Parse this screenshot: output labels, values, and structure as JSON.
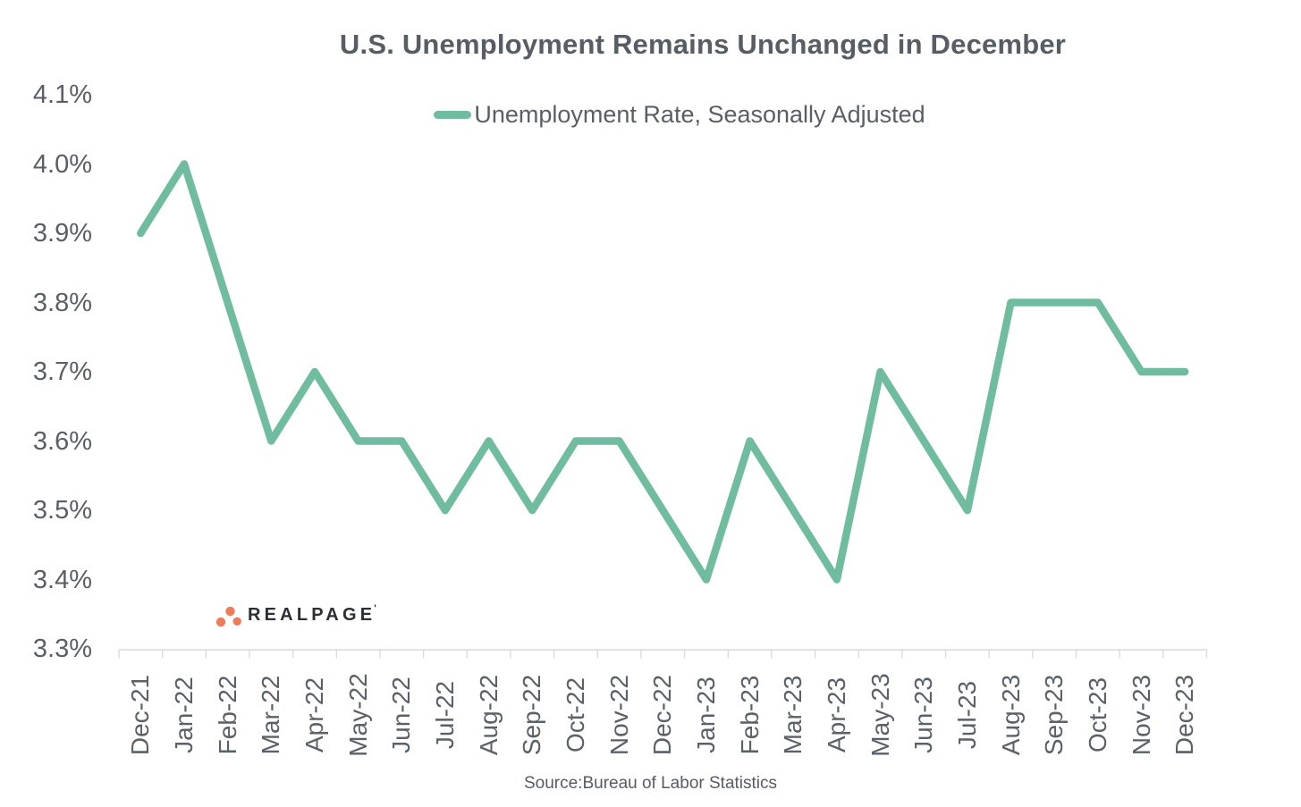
{
  "chart": {
    "title": "U.S. Unemployment Remains Unchanged in December",
    "legend_label": "Unemployment Rate, Seasonally Adjusted",
    "source": "Source:Bureau of Labor Statistics"
  },
  "logo": {
    "text": "REALPAGE",
    "trademark": "'",
    "dot_color": "#ec7c5b",
    "text_color": "#2b2e34"
  },
  "chart_data": {
    "type": "line",
    "title": "U.S. Unemployment Remains Unchanged in December",
    "legend": "Unemployment Rate, Seasonally Adjusted",
    "legend_position": "top",
    "categories": [
      "Dec-21",
      "Jan-22",
      "Feb-22",
      "Mar-22",
      "Apr-22",
      "May-22",
      "Jun-22",
      "Jul-22",
      "Aug-22",
      "Sep-22",
      "Oct-22",
      "Nov-22",
      "Dec-22",
      "Jan-23",
      "Feb-23",
      "Mar-23",
      "Apr-23",
      "May-23",
      "Jun-23",
      "Jul-23",
      "Aug-23",
      "Sep-23",
      "Oct-23",
      "Nov-23",
      "Dec-23"
    ],
    "values": [
      3.9,
      4.0,
      3.8,
      3.6,
      3.7,
      3.6,
      3.6,
      3.5,
      3.6,
      3.5,
      3.6,
      3.6,
      3.5,
      3.4,
      3.6,
      3.5,
      3.4,
      3.7,
      3.6,
      3.5,
      3.8,
      3.8,
      3.8,
      3.7,
      3.7
    ],
    "unit": "%",
    "xlabel": "",
    "ylabel": "",
    "ylim": [
      3.3,
      4.1
    ],
    "y_ticks": [
      "4.1%",
      "4.0%",
      "3.9%",
      "3.8%",
      "3.7%",
      "3.6%",
      "3.5%",
      "3.4%",
      "3.3%"
    ],
    "grid": false,
    "line_color": "#6fbc9e",
    "axis_color": "#d9d9d9",
    "text_color": "#585f66"
  }
}
